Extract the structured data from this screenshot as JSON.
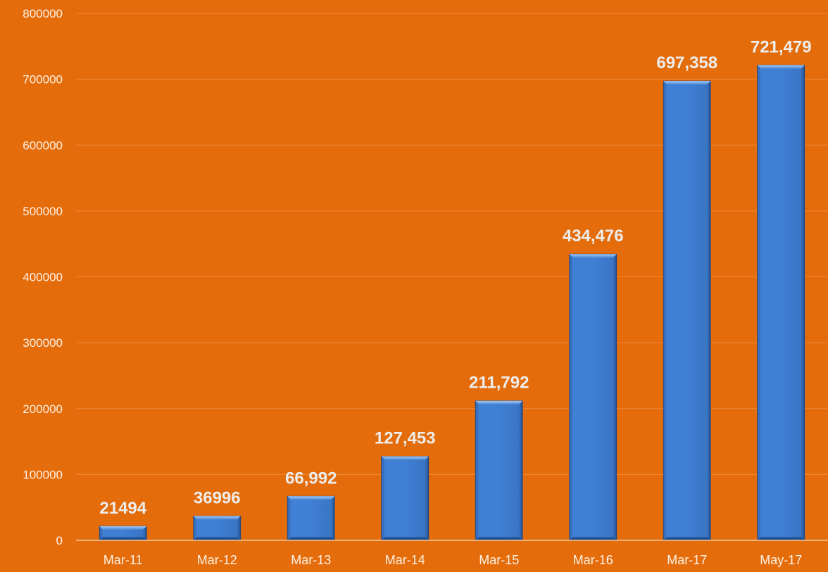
{
  "chart_data": {
    "type": "bar",
    "title": "",
    "xlabel": "",
    "ylabel": "",
    "categories": [
      "Mar-11",
      "Mar-12",
      "Mar-13",
      "Mar-14",
      "Mar-15",
      "Mar-16",
      "Mar-17",
      "May-17"
    ],
    "values": [
      21494,
      36996,
      66992,
      127453,
      211792,
      434476,
      697358,
      721479
    ],
    "data_labels": [
      "21494",
      "36996",
      "66,992",
      "127,453",
      "211,792",
      "434,476",
      "697,358",
      "721,479"
    ],
    "ylim": [
      0,
      800000
    ],
    "yticks": [
      0,
      100000,
      200000,
      300000,
      400000,
      500000,
      600000,
      700000,
      800000
    ],
    "ytick_labels": [
      "0",
      "100000",
      "200000",
      "300000",
      "400000",
      "500000",
      "600000",
      "700000",
      "800000"
    ],
    "grid": true,
    "legend": "none",
    "colors": {
      "background": "#E46C0A",
      "bar_fill": "#3F7FD4",
      "bar_dark": "#2A5FA8",
      "bar_top": "#8EB9EE",
      "gridline": "#EE8A3A",
      "axis_line": "#F5C9A0",
      "tick_text": "#FFF2E6",
      "data_label": "#EDEDED"
    }
  }
}
